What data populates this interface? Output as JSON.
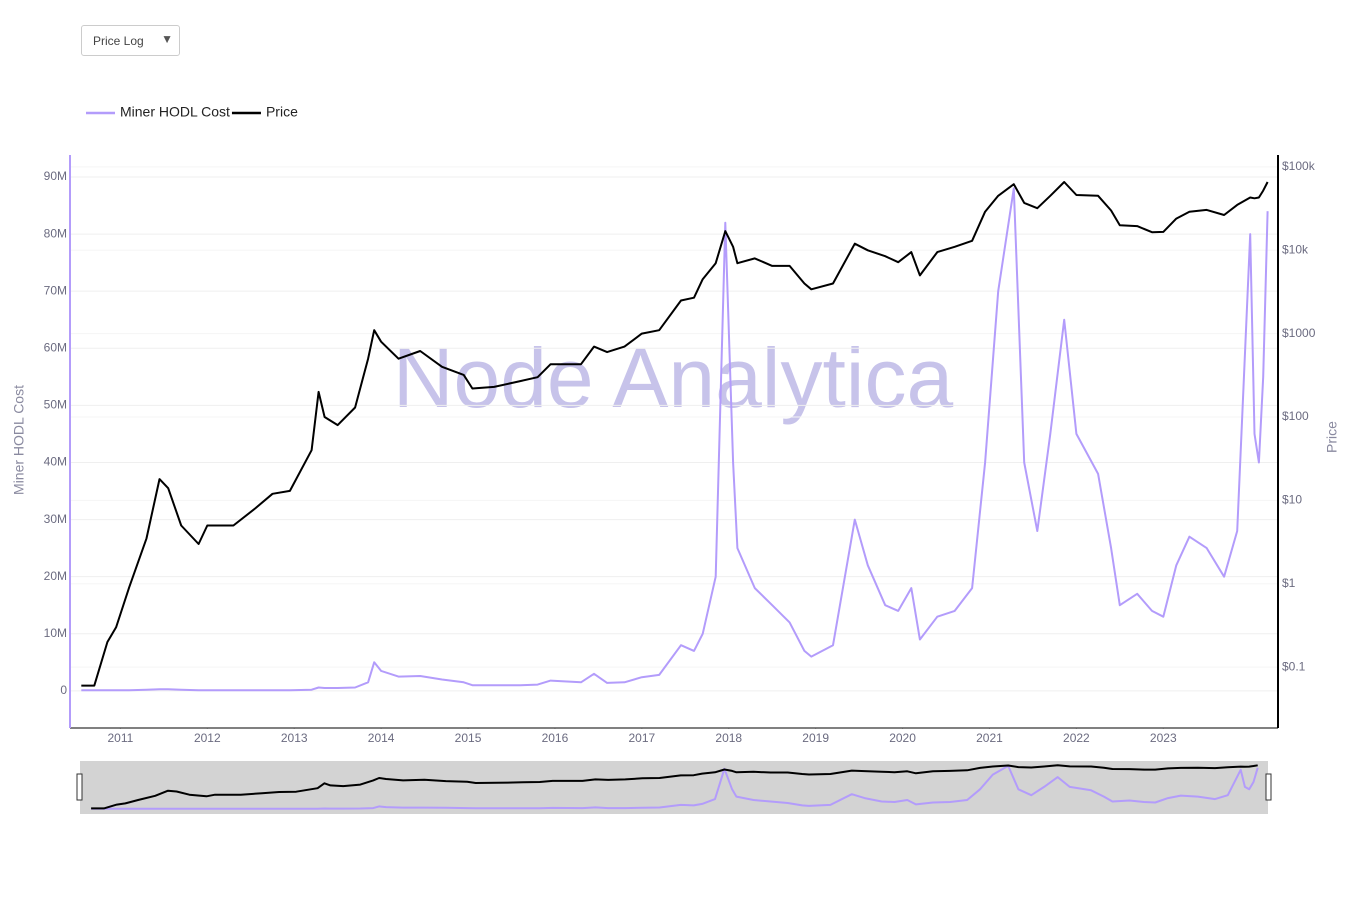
{
  "controls": {
    "scale_dropdown": "Price Log"
  },
  "chart_data": {
    "type": "line",
    "watermark": "Node Analytica",
    "y_label": "Miner HODL Cost",
    "y2_label": "Price",
    "y2_log": true,
    "grid": true,
    "legend": "top-left",
    "range_slider": true,
    "x": [
      2010.55,
      2010.7,
      2010.85,
      2010.95,
      2011.1,
      2011.3,
      2011.45,
      2011.55,
      2011.7,
      2011.9,
      2012.0,
      2012.3,
      2012.55,
      2012.75,
      2012.95,
      2013.2,
      2013.28,
      2013.35,
      2013.5,
      2013.7,
      2013.85,
      2013.92,
      2014.0,
      2014.2,
      2014.45,
      2014.7,
      2014.95,
      2015.05,
      2015.3,
      2015.6,
      2015.8,
      2015.95,
      2016.3,
      2016.45,
      2016.6,
      2016.8,
      2017.0,
      2017.2,
      2017.45,
      2017.6,
      2017.7,
      2017.85,
      2017.96,
      2018.05,
      2018.1,
      2018.3,
      2018.5,
      2018.7,
      2018.87,
      2018.95,
      2019.2,
      2019.45,
      2019.6,
      2019.8,
      2019.95,
      2020.1,
      2020.2,
      2020.4,
      2020.6,
      2020.8,
      2020.95,
      2021.1,
      2021.28,
      2021.4,
      2021.55,
      2021.7,
      2021.86,
      2022.0,
      2022.25,
      2022.4,
      2022.5,
      2022.7,
      2022.87,
      2023.0,
      2023.15,
      2023.3,
      2023.5,
      2023.7,
      2023.85,
      2024.0,
      2024.05,
      2024.1,
      2024.15,
      2024.2
    ],
    "series": [
      {
        "name": "Miner HODL Cost",
        "color": "#b39cfb",
        "axis": "y",
        "values": [
          100000,
          100000,
          100000,
          100000,
          100000,
          200000,
          300000,
          300000,
          200000,
          100000,
          100000,
          100000,
          100000,
          100000,
          100000,
          200000,
          600000,
          500000,
          500000,
          600000,
          1500000,
          5000000,
          3500000,
          2500000,
          2600000,
          2000000,
          1500000,
          1000000,
          1000000,
          1000000,
          1100000,
          1800000,
          1500000,
          3000000,
          1400000,
          1500000,
          2400000,
          2800000,
          8000000,
          7000000,
          10000000,
          20000000,
          82000000,
          40000000,
          25000000,
          18000000,
          15000000,
          12000000,
          7000000,
          6000000,
          8000000,
          30000000,
          22000000,
          15000000,
          14000000,
          18000000,
          9000000,
          13000000,
          14000000,
          18000000,
          40000000,
          70000000,
          88000000,
          40000000,
          28000000,
          45000000,
          65000000,
          45000000,
          38000000,
          25000000,
          15000000,
          17000000,
          14000000,
          13000000,
          22000000,
          27000000,
          25000000,
          20000000,
          28000000,
          80000000,
          45000000,
          40000000,
          55000000,
          84000000
        ]
      },
      {
        "name": "Price",
        "color": "#000000",
        "axis": "y2",
        "values": [
          0.06,
          0.06,
          0.2,
          0.3,
          0.9,
          3.5,
          18,
          14,
          5,
          3,
          5,
          5,
          8,
          12,
          13,
          40,
          200,
          100,
          80,
          130,
          500,
          1100,
          800,
          500,
          620,
          400,
          320,
          220,
          230,
          270,
          300,
          430,
          430,
          700,
          600,
          700,
          1000,
          1100,
          2500,
          2700,
          4500,
          7000,
          17000,
          11000,
          7000,
          8000,
          6500,
          6500,
          4000,
          3400,
          4000,
          12000,
          10000,
          8500,
          7200,
          9500,
          5000,
          9500,
          11000,
          13000,
          29000,
          45000,
          62000,
          37000,
          32000,
          45000,
          66000,
          46000,
          45000,
          30000,
          20000,
          19500,
          16500,
          16600,
          24000,
          29000,
          30500,
          26500,
          35000,
          43000,
          42000,
          43000,
          52000,
          66000
        ]
      }
    ],
    "xlim": [
      2010.42,
      2024.32
    ],
    "xticks": [
      2011,
      2012,
      2013,
      2014,
      2015,
      2016,
      2017,
      2018,
      2019,
      2020,
      2021,
      2022,
      2023
    ],
    "ylim": [
      -6500000,
      93850000
    ],
    "yticks": [
      0,
      {
        "value": 10000000,
        "label": "10M"
      },
      {
        "value": 20000000,
        "label": "20M"
      },
      {
        "value": 30000000,
        "label": "30M"
      },
      {
        "value": 40000000,
        "label": "40M"
      },
      {
        "value": 50000000,
        "label": "50M"
      },
      {
        "value": 60000000,
        "label": "60M"
      },
      {
        "value": 70000000,
        "label": "70M"
      },
      {
        "value": 80000000,
        "label": "80M"
      },
      {
        "value": 90000000,
        "label": "90M"
      }
    ],
    "y2lim": [
      0.0186,
      139000
    ],
    "y2ticks": [
      {
        "value": 0.1,
        "label": "$0.1"
      },
      {
        "value": 1,
        "label": "$1"
      },
      {
        "value": 10,
        "label": "$10"
      },
      {
        "value": 100,
        "label": "$100"
      },
      {
        "value": 1000,
        "label": "$1000"
      },
      {
        "value": 10000,
        "label": "$10k"
      },
      {
        "value": 100000,
        "label": "$100k"
      }
    ]
  }
}
